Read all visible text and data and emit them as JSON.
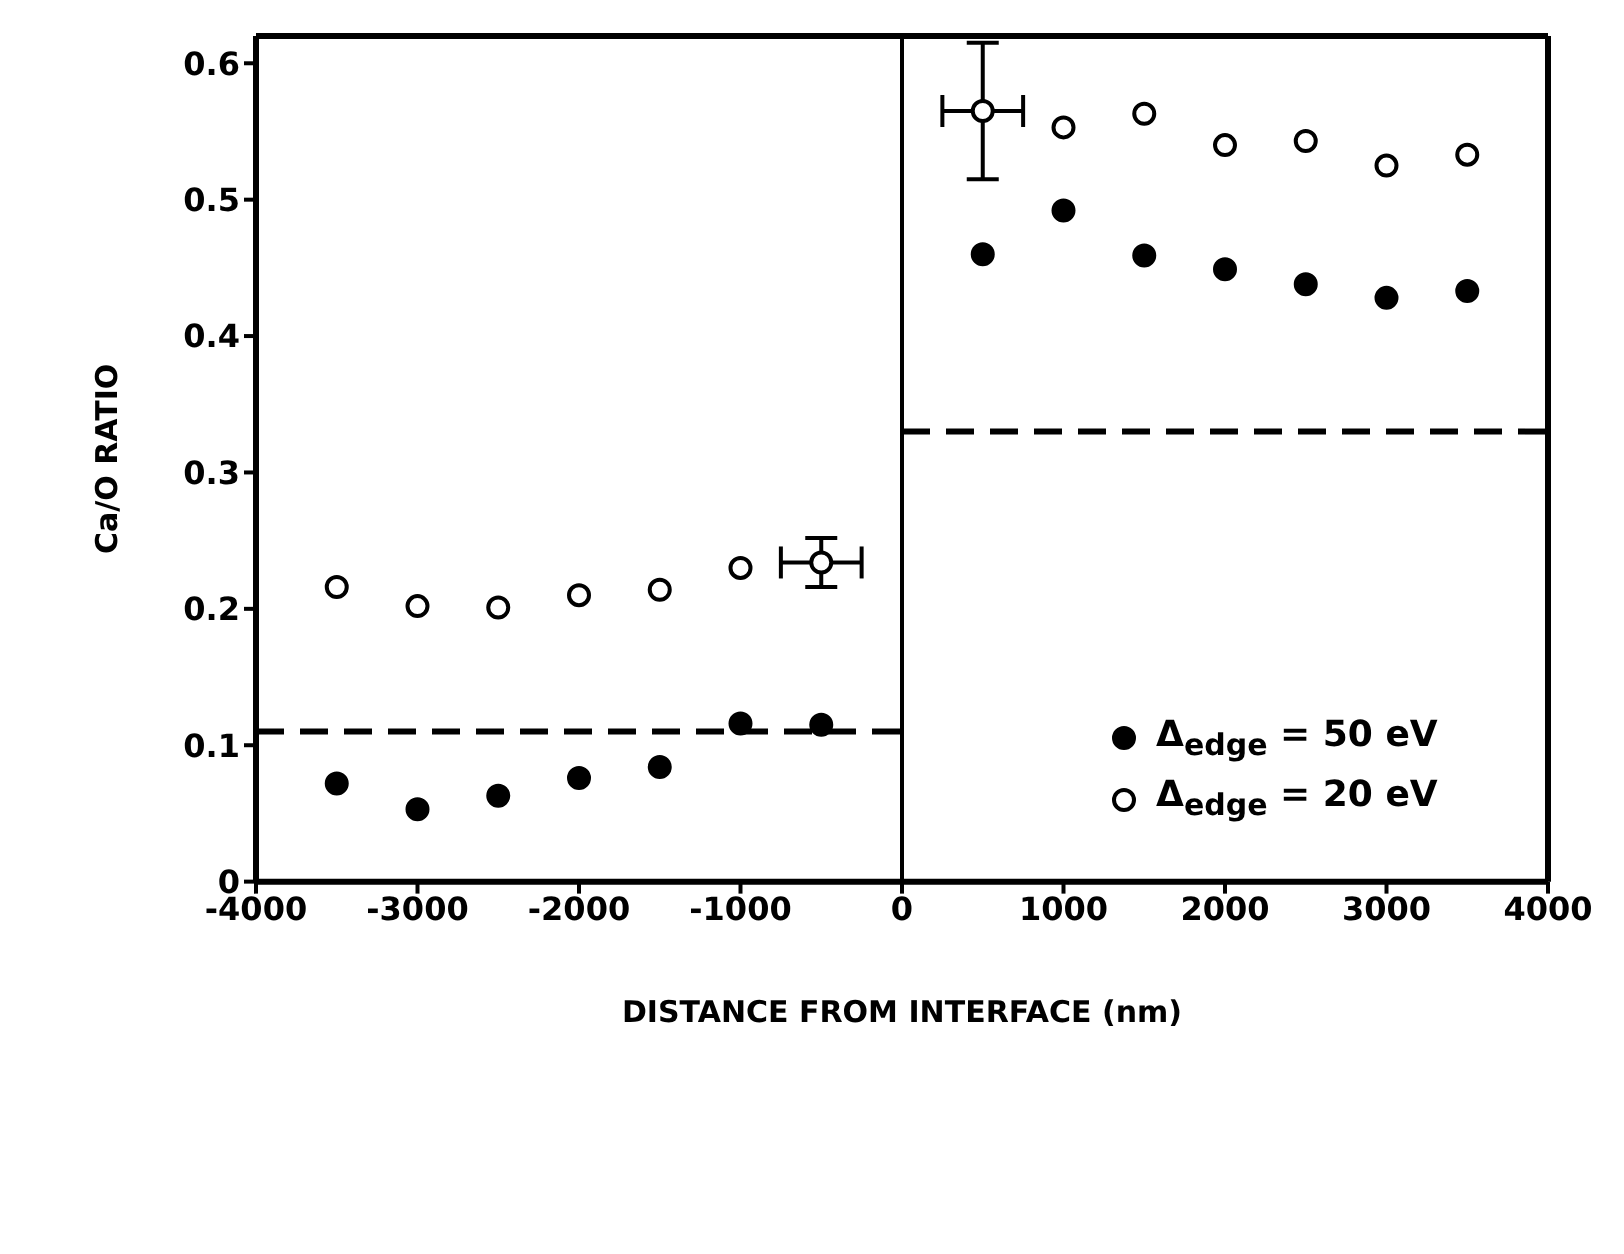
{
  "chart_data": {
    "type": "scatter",
    "xlabel": "DISTANCE FROM INTERFACE (nm)",
    "ylabel": "Ca/O RATIO",
    "xlim": [
      -4000,
      4000
    ],
    "xticks": [
      -4000,
      -3000,
      -2000,
      -1000,
      0,
      1000,
      2000,
      3000,
      4000
    ],
    "ylim": [
      0,
      0.62
    ],
    "yticks": [
      0,
      0.1,
      0.2,
      0.3,
      0.4,
      0.5,
      0.6
    ],
    "legend": "bottom right",
    "marker": "circle",
    "series": [
      {
        "name": "Δ$_{edge}$ = 50 eV",
        "color": "#000000",
        "x": [
          -3500,
          -3000,
          -2500,
          -2000,
          -1500,
          -1000,
          -500,
          500,
          1000,
          1500,
          2000,
          2500,
          3000,
          3500
        ],
        "values": [
          0.072,
          0.053,
          0.063,
          0.076,
          0.084,
          0.116,
          0.115,
          0.46,
          0.492,
          0.459,
          0.449,
          0.438,
          0.428,
          0.433
        ]
      },
      {
        "name": "Δ$_{edge}$ = 20 eV",
        "color": "#ffffff",
        "x": [
          -3500,
          -3000,
          -2500,
          -2000,
          -1500,
          -1000,
          -500,
          500,
          1000,
          1500,
          2000,
          2500,
          3000,
          3500
        ],
        "values": [
          0.216,
          0.202,
          0.201,
          0.21,
          0.214,
          0.23,
          0.234,
          0.565,
          0.553,
          0.563,
          0.54,
          0.543,
          0.525,
          0.533
        ],
        "errors": [
          null,
          null,
          null,
          null,
          null,
          null,
          0.018,
          0.05,
          null,
          null,
          null,
          null,
          null,
          null
        ],
        "xerrors": [
          null,
          null,
          null,
          null,
          null,
          null,
          250,
          250,
          null,
          null,
          null,
          null,
          null,
          null
        ]
      },
      {
        "type": "line",
        "color": "#000000",
        "line_style": "dashed",
        "marker": "none",
        "x": [
          -4000,
          0
        ],
        "values": [
          0.11,
          0.11
        ]
      },
      {
        "type": "line",
        "color": "#000000",
        "line_style": "dashed",
        "marker": "none",
        "x": [
          0,
          4000
        ],
        "values": [
          0.33,
          0.33
        ]
      }
    ],
    "ref_lines": [
      {
        "axis": "x",
        "value": 0,
        "color": "#000000"
      }
    ]
  }
}
